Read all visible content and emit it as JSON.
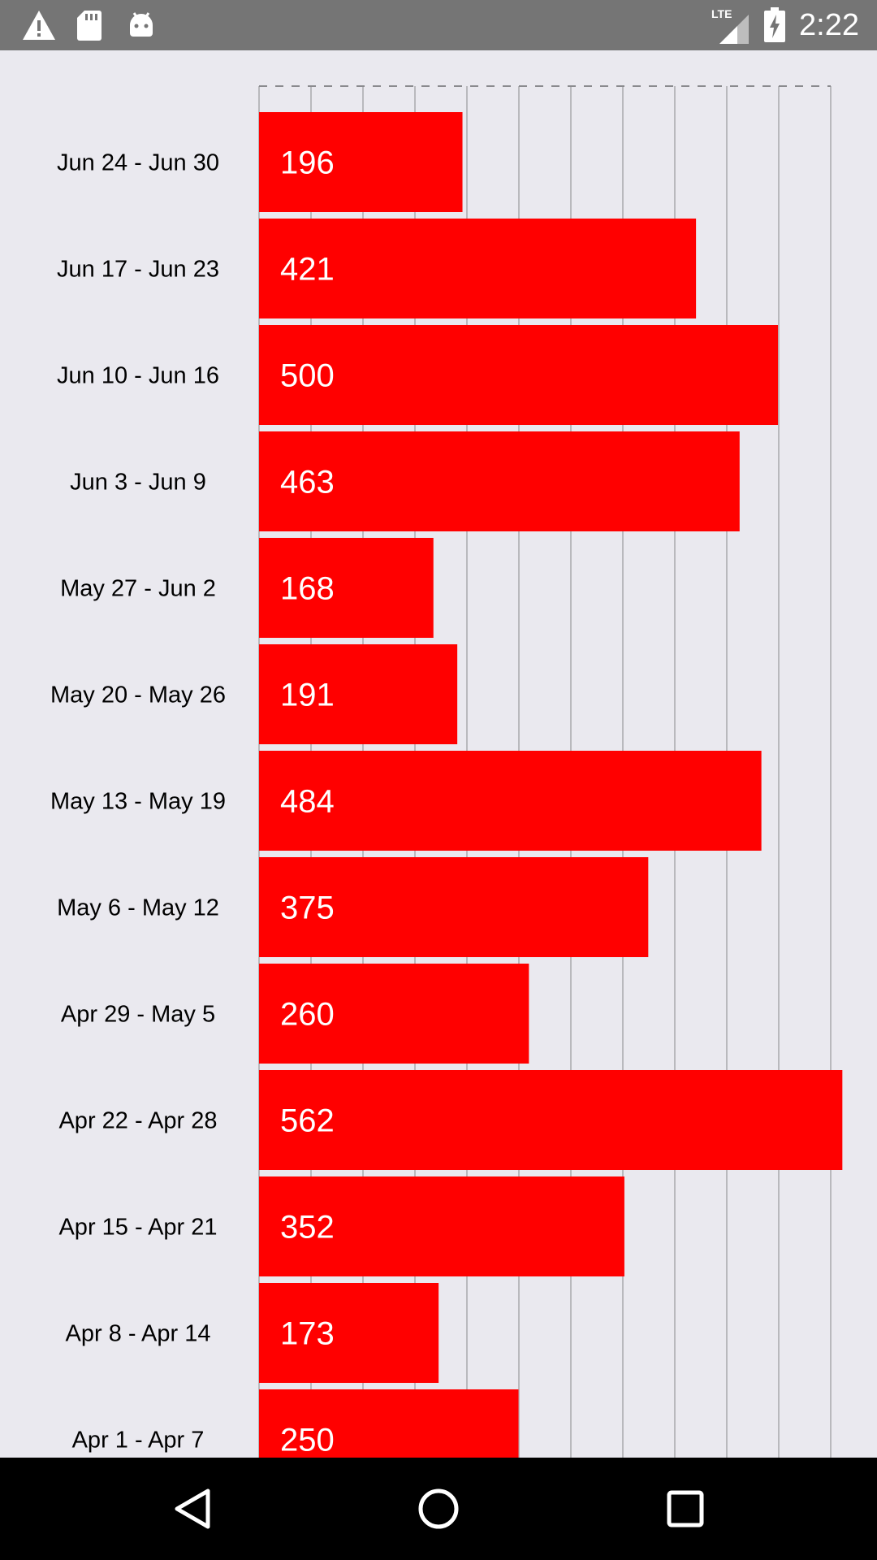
{
  "status_bar": {
    "time": "2:22",
    "network_label": "LTE",
    "icons": [
      "warning-icon",
      "sd-card-icon",
      "android-icon",
      "lte-signal-icon",
      "battery-charging-icon"
    ]
  },
  "colors": {
    "bar": "#ff0000",
    "background": "#eae9ef",
    "grid": "#b9b9bd",
    "label_text": "#000000",
    "value_text": "#ffffff"
  },
  "chart_data": {
    "type": "bar",
    "orientation": "horizontal",
    "categories": [
      "Jun 24 - Jun 30",
      "Jun 17 - Jun 23",
      "Jun 10 - Jun 16",
      "Jun 3 - Jun 9",
      "May 27 - Jun 2",
      "May 20 - May 26",
      "May 13 - May 19",
      "May 6 - May 12",
      "Apr 29 - May 5",
      "Apr 22 - Apr 28",
      "Apr 15 - Apr 21",
      "Apr 8 - Apr 14",
      "Apr 1 - Apr 7"
    ],
    "values": [
      196,
      421,
      500,
      463,
      168,
      191,
      484,
      375,
      260,
      562,
      352,
      173,
      250
    ],
    "xlim": [
      0,
      550
    ],
    "grid": true,
    "legend": "none"
  },
  "nav_bar": {
    "buttons": [
      "back-icon",
      "home-icon",
      "recents-icon"
    ]
  }
}
